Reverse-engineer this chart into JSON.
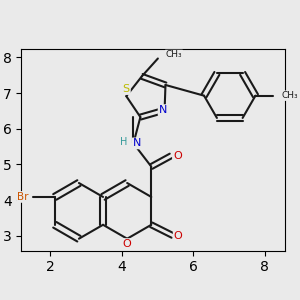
{
  "bg_color": "#eaeaea",
  "bond_color": "#1a1a1a",
  "bond_width": 1.5,
  "atom_colors": {
    "Br": "#cc5500",
    "O": "#cc0000",
    "N": "#0000cc",
    "H": "#339999",
    "S": "#bbbb00",
    "C": "#1a1a1a"
  }
}
